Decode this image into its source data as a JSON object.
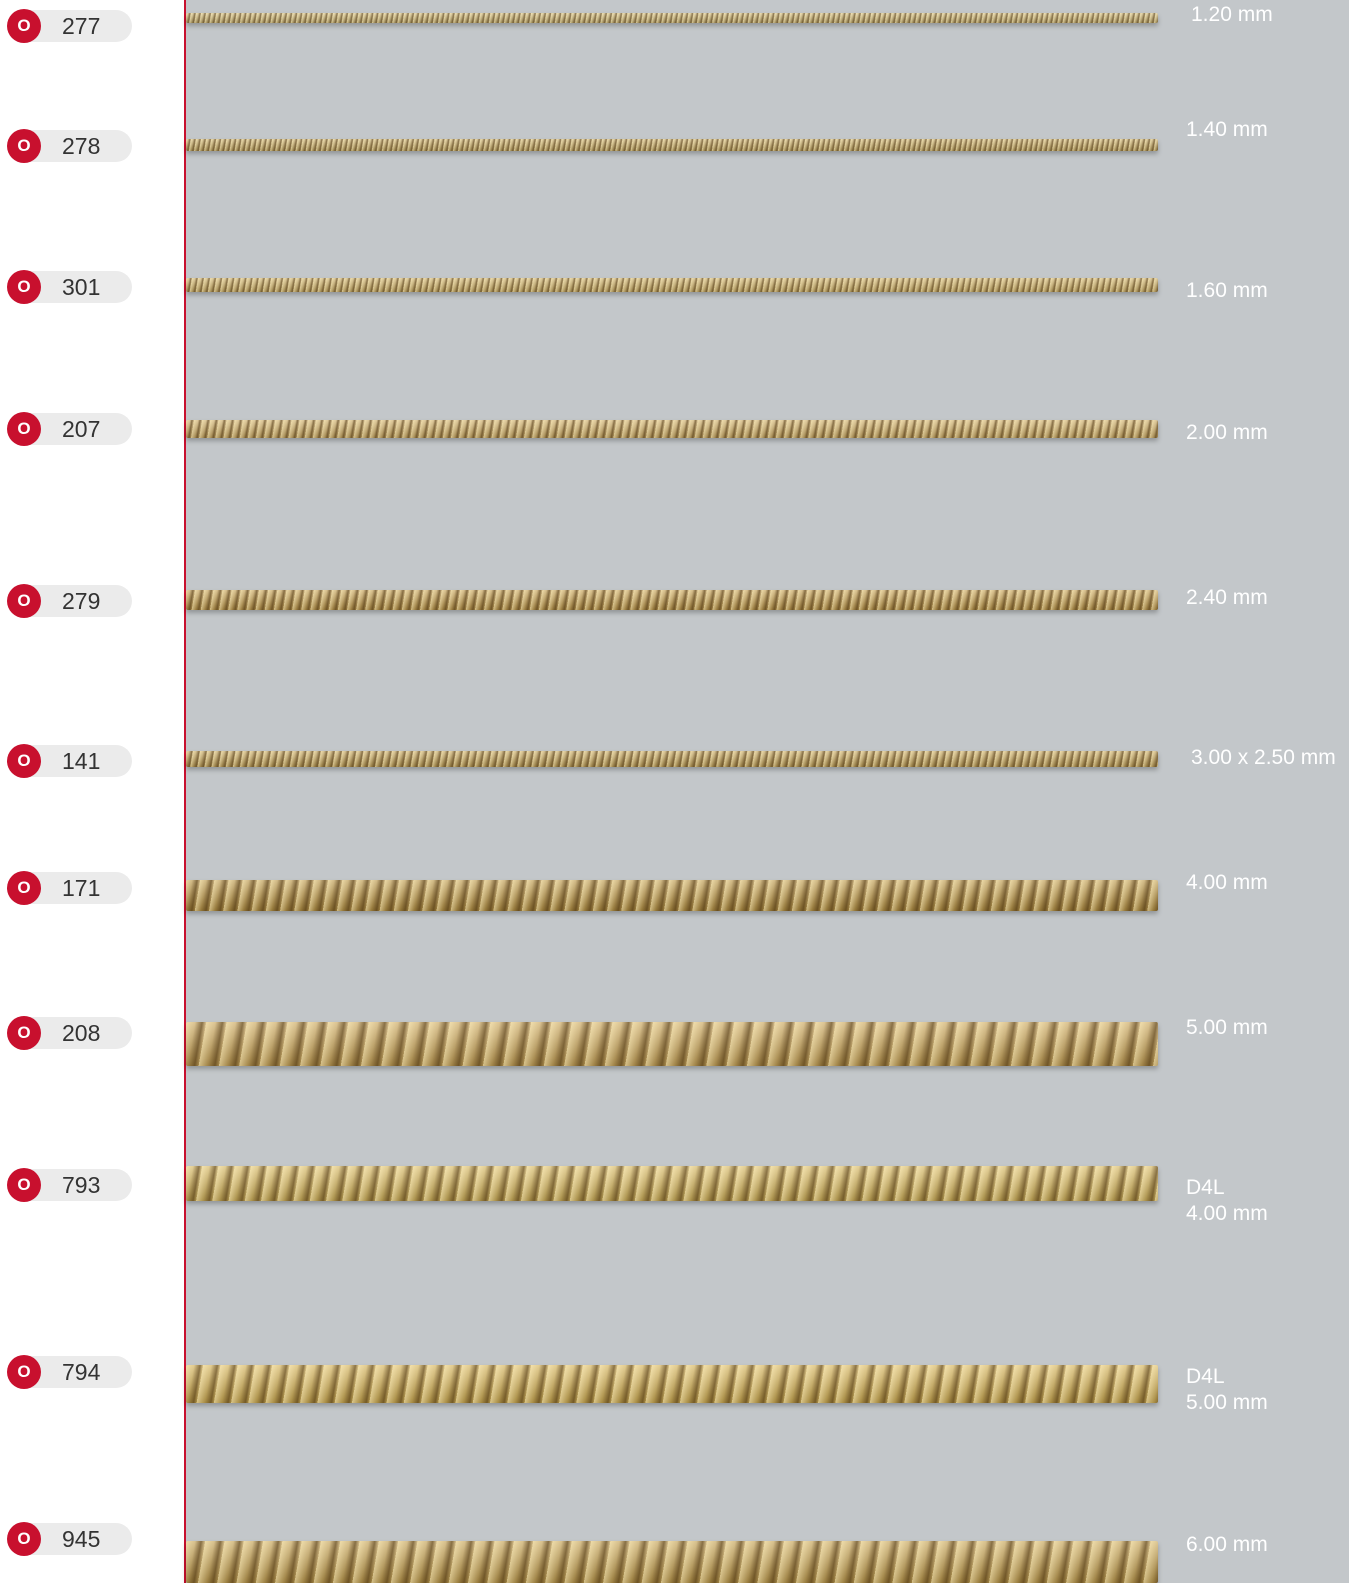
{
  "chains": [
    {
      "code": "277",
      "badge": "O",
      "size": "1.20 mm",
      "color": "#cdb779"
    },
    {
      "code": "278",
      "badge": "O",
      "size": "1.40 mm",
      "color": "#c8ad6a"
    },
    {
      "code": "301",
      "badge": "O",
      "size": "1.60 mm",
      "color": "#c9ac66"
    },
    {
      "code": "207",
      "badge": "O",
      "size": "2.00 mm",
      "color": "#caa964"
    },
    {
      "code": "279",
      "badge": "O",
      "size": "2.40 mm",
      "color": "#c19c50"
    },
    {
      "code": "141",
      "badge": "O",
      "size": "3.00 x 2.50 mm",
      "color": "#c2a35c"
    },
    {
      "code": "171",
      "badge": "O",
      "size": "4.00 mm",
      "color": "#b99547"
    },
    {
      "code": "208",
      "badge": "O",
      "size": "5.00 mm",
      "color": "#c9a55a"
    },
    {
      "code": "793",
      "badge": "O",
      "size": "D4L\n4.00 mm",
      "color": "#d4b55e"
    },
    {
      "code": "794",
      "badge": "O",
      "size": "D4L\n5.00 mm",
      "color": "#d2b056"
    },
    {
      "code": "945",
      "badge": "O",
      "size": "6.00 mm",
      "color": "#c3a052"
    }
  ]
}
